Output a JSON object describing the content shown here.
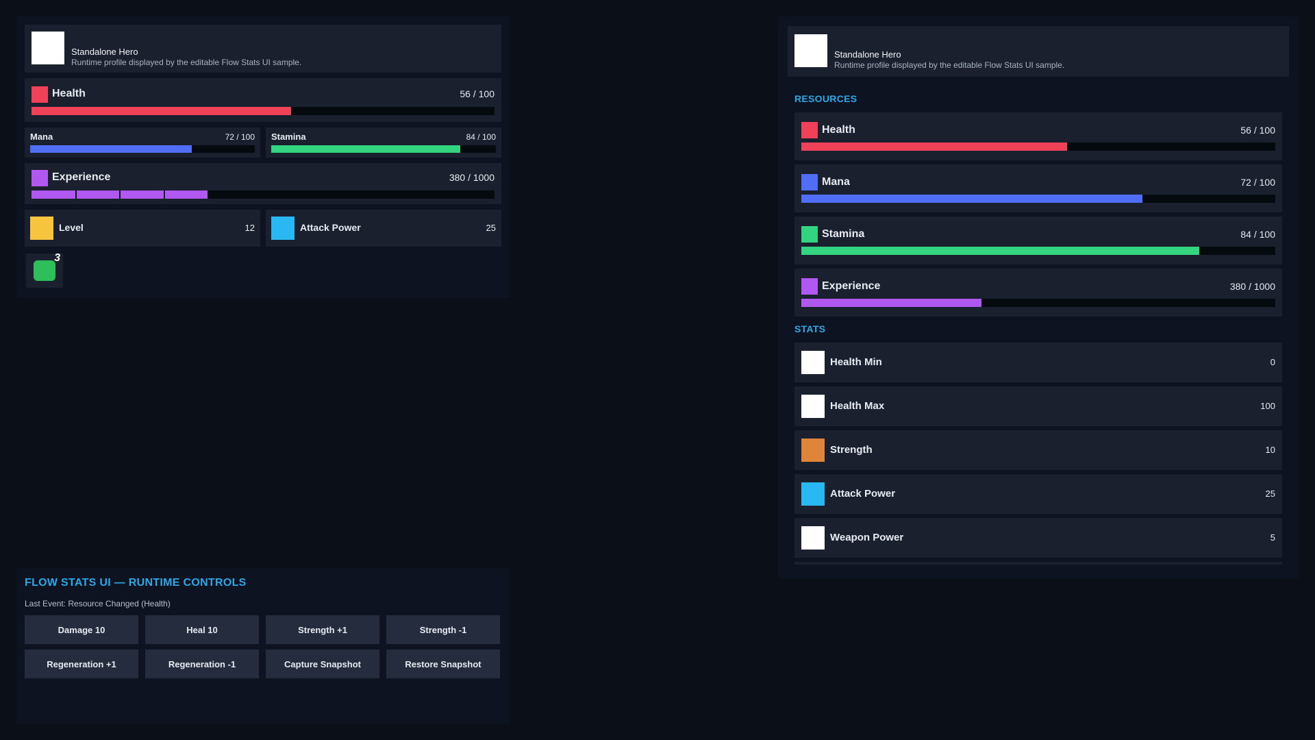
{
  "profile": {
    "name": "Standalone Hero",
    "description": "Runtime profile displayed by the editable Flow Stats UI sample."
  },
  "colors": {
    "health": "#ef4259",
    "mana": "#4f6df5",
    "stamina": "#33d47f",
    "experience": "#b058f0",
    "level": "#f6c53d",
    "attack_power": "#2ab8f3",
    "strength": "#e0843a",
    "white": "#ffffff",
    "badge": "#2fbf5a",
    "section_title": "#2aa9e6"
  },
  "left": {
    "health": {
      "label": "Health",
      "value": "56 / 100",
      "fraction": 0.56
    },
    "mana": {
      "label": "Mana",
      "value": "72 / 100",
      "fraction": 0.72
    },
    "stamina": {
      "label": "Stamina",
      "value": "84 / 100",
      "fraction": 0.84
    },
    "experience": {
      "label": "Experience",
      "value": "380 / 1000",
      "fraction": 0.38,
      "segments": 4
    },
    "level": {
      "label": "Level",
      "value": "12"
    },
    "attack_power": {
      "label": "Attack Power",
      "value": "25"
    },
    "badge_count": "3"
  },
  "controls": {
    "title": "FLOW STATS UI — RUNTIME CONTROLS",
    "last_event": "Last Event: Resource Changed (Health)",
    "buttons": [
      "Damage 10",
      "Heal 10",
      "Strength +1",
      "Strength -1",
      "Regeneration +1",
      "Regeneration -1",
      "Capture Snapshot",
      "Restore Snapshot"
    ]
  },
  "right": {
    "resources_title": "RESOURCES",
    "resources": [
      {
        "label": "Health",
        "value": "56 / 100",
        "fraction": 0.56,
        "color": "health"
      },
      {
        "label": "Mana",
        "value": "72 / 100",
        "fraction": 0.72,
        "color": "mana"
      },
      {
        "label": "Stamina",
        "value": "84 / 100",
        "fraction": 0.84,
        "color": "stamina"
      },
      {
        "label": "Experience",
        "value": "380 / 1000",
        "fraction": 0.38,
        "color": "experience"
      }
    ],
    "stats_title": "STATS",
    "stats": [
      {
        "label": "Health Min",
        "value": "0",
        "color": "white"
      },
      {
        "label": "Health Max",
        "value": "100",
        "color": "white"
      },
      {
        "label": "Strength",
        "value": "10",
        "color": "strength"
      },
      {
        "label": "Attack Power",
        "value": "25",
        "color": "attack_power"
      },
      {
        "label": "Weapon Power",
        "value": "5",
        "color": "white"
      }
    ]
  }
}
